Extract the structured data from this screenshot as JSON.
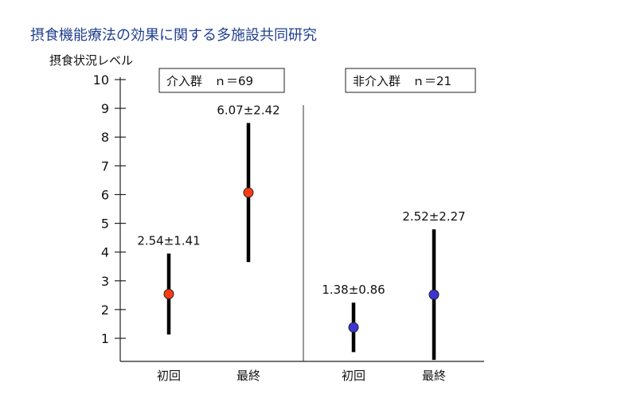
{
  "title": "摂食機能療法の効果に関する多施設共同研究",
  "chart_data": {
    "type": "scatter",
    "ylabel": "摂食状況レベル",
    "ylim": [
      0,
      10
    ],
    "yticks": [
      1,
      2,
      3,
      4,
      5,
      6,
      7,
      8,
      9,
      10
    ],
    "grid": false,
    "panels": [
      {
        "label": "介入群　ｎ＝69",
        "color": "#ff3b14",
        "points": [
          {
            "x": "初回",
            "mean": 2.54,
            "sd": 1.41,
            "annotation": "2.54±1.41"
          },
          {
            "x": "最終",
            "mean": 6.07,
            "sd": 2.42,
            "annotation": "6.07±2.42"
          }
        ]
      },
      {
        "label": "非介入群　ｎ＝21",
        "color": "#3b35d6",
        "points": [
          {
            "x": "初回",
            "mean": 1.38,
            "sd": 0.86,
            "annotation": "1.38±0.86"
          },
          {
            "x": "最終",
            "mean": 2.52,
            "sd": 2.27,
            "annotation": "2.52±2.27"
          }
        ]
      }
    ]
  }
}
